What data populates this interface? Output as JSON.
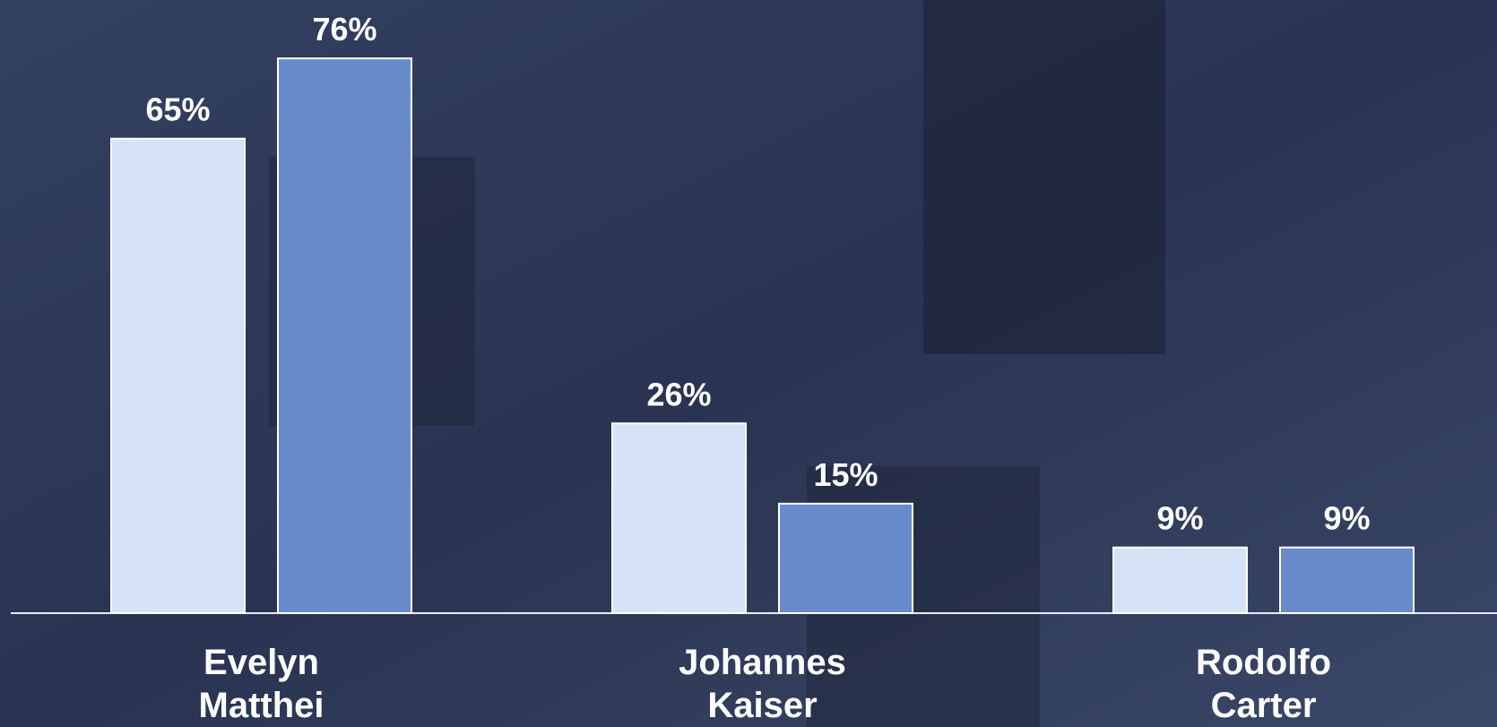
{
  "chart_data": {
    "type": "bar",
    "categories": [
      "Evelyn Matthei",
      "Johannes Kaiser",
      "Rodolfo Carter"
    ],
    "series": [
      {
        "color": "#d6e2f5",
        "values": [
          65,
          26,
          9
        ],
        "value_labels": [
          "65%",
          "26%",
          "9%"
        ]
      },
      {
        "color": "#6a8bcb",
        "values": [
          76,
          15,
          9
        ],
        "value_labels": [
          "76%",
          "15%",
          "9%"
        ]
      }
    ],
    "ylim": [
      0,
      84
    ]
  }
}
